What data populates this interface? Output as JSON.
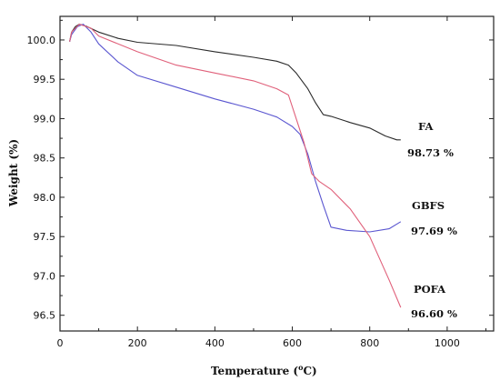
{
  "chart_data": {
    "type": "line",
    "xlabel": "Temperature (°C)",
    "xlabel_main": "Temperature (",
    "xlabel_sup": "o",
    "xlabel_unit": "C)",
    "ylabel": "Weight (%)",
    "xlim": [
      0,
      1120
    ],
    "ylim": [
      96.3,
      100.3
    ],
    "xticks": [
      0,
      200,
      400,
      600,
      800,
      1000
    ],
    "yticks": [
      96.5,
      97.0,
      97.5,
      98.0,
      98.5,
      99.0,
      99.5,
      100.0
    ],
    "ytick_labels": [
      "96.5",
      "97.0",
      "97.5",
      "98.0",
      "98.5",
      "99.0",
      "99.5",
      "100.0"
    ],
    "grid": false,
    "series": [
      {
        "name": "FA",
        "color": "#2a2a2a",
        "final_label": "98.73 %",
        "points": [
          [
            25,
            99.98
          ],
          [
            30,
            100.1
          ],
          [
            40,
            100.17
          ],
          [
            50,
            100.2
          ],
          [
            70,
            100.17
          ],
          [
            100,
            100.1
          ],
          [
            150,
            100.02
          ],
          [
            200,
            99.97
          ],
          [
            300,
            99.93
          ],
          [
            400,
            99.85
          ],
          [
            500,
            99.78
          ],
          [
            560,
            99.73
          ],
          [
            590,
            99.68
          ],
          [
            610,
            99.58
          ],
          [
            640,
            99.38
          ],
          [
            660,
            99.2
          ],
          [
            680,
            99.05
          ],
          [
            700,
            99.03
          ],
          [
            750,
            98.95
          ],
          [
            800,
            98.88
          ],
          [
            840,
            98.78
          ],
          [
            870,
            98.73
          ],
          [
            880,
            98.73
          ]
        ]
      },
      {
        "name": "GBFS",
        "color": "#5a56d0",
        "final_label": "97.69 %",
        "points": [
          [
            25,
            99.98
          ],
          [
            30,
            100.07
          ],
          [
            45,
            100.17
          ],
          [
            60,
            100.2
          ],
          [
            80,
            100.1
          ],
          [
            100,
            99.95
          ],
          [
            150,
            99.72
          ],
          [
            200,
            99.55
          ],
          [
            300,
            99.4
          ],
          [
            400,
            99.25
          ],
          [
            500,
            99.12
          ],
          [
            560,
            99.02
          ],
          [
            600,
            98.9
          ],
          [
            620,
            98.8
          ],
          [
            640,
            98.55
          ],
          [
            660,
            98.2
          ],
          [
            680,
            97.9
          ],
          [
            700,
            97.62
          ],
          [
            740,
            97.58
          ],
          [
            800,
            97.56
          ],
          [
            850,
            97.6
          ],
          [
            880,
            97.69
          ]
        ]
      },
      {
        "name": "POFA",
        "color": "#e0607a",
        "final_label": "96.60 %",
        "points": [
          [
            25,
            99.98
          ],
          [
            30,
            100.1
          ],
          [
            50,
            100.2
          ],
          [
            80,
            100.15
          ],
          [
            100,
            100.05
          ],
          [
            200,
            99.85
          ],
          [
            300,
            99.68
          ],
          [
            400,
            99.58
          ],
          [
            500,
            99.48
          ],
          [
            560,
            99.38
          ],
          [
            590,
            99.3
          ],
          [
            610,
            99.0
          ],
          [
            630,
            98.7
          ],
          [
            650,
            98.3
          ],
          [
            670,
            98.2
          ],
          [
            700,
            98.1
          ],
          [
            750,
            97.85
          ],
          [
            800,
            97.5
          ],
          [
            850,
            96.95
          ],
          [
            880,
            96.6
          ]
        ]
      }
    ]
  }
}
